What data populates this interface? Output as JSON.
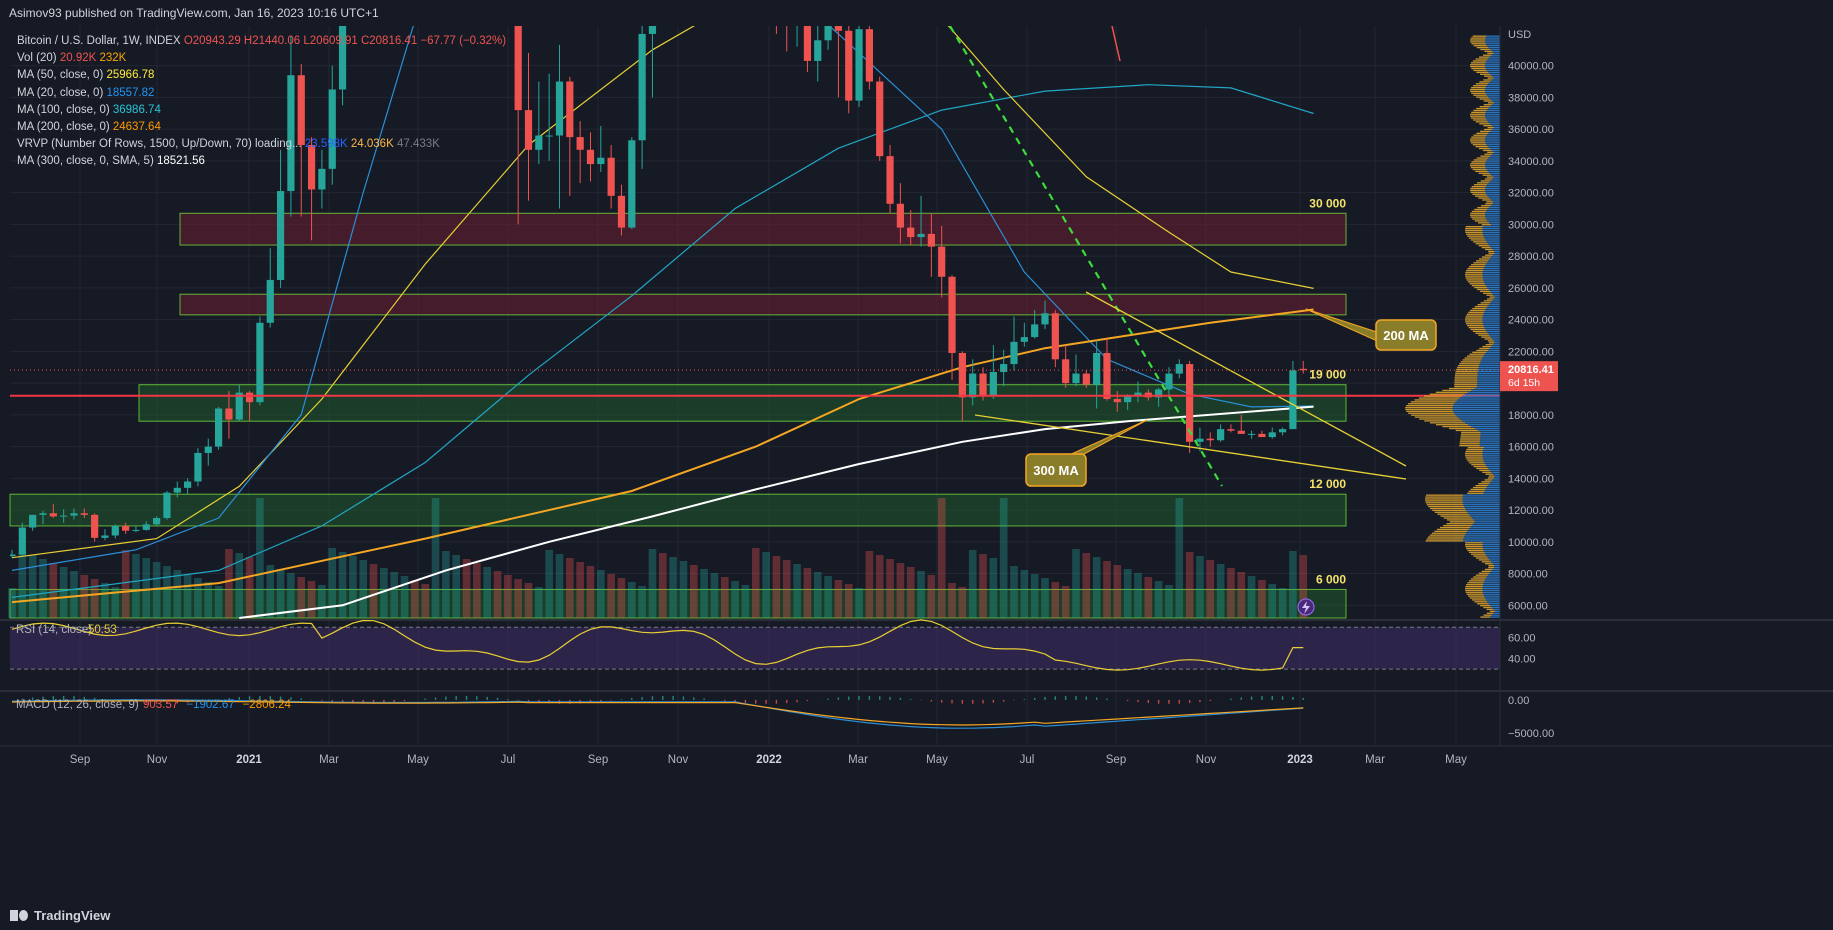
{
  "header": {
    "published": "Asimov93 published on TradingView.com, Jan 16, 2023 10:16 UTC+1"
  },
  "legend": [
    {
      "label": "Bitcoin / U.S. Dollar, 1W, INDEX",
      "values": [
        "O20943.29",
        "H21440.06",
        "L20609.91",
        "C20816.41",
        "−67.77 (−0.32%)"
      ],
      "colors": [
        "#ef5350",
        "#ef5350",
        "#ef5350",
        "#ef5350",
        "#ef5350"
      ]
    },
    {
      "label": "Vol (20)",
      "values": [
        "20.92K",
        "232K"
      ],
      "colors": [
        "#ef5350",
        "#f7a600"
      ]
    },
    {
      "label": "MA (50, close, 0)",
      "values": [
        "25966.78"
      ],
      "colors": [
        "#ffeb3b"
      ]
    },
    {
      "label": "MA (20, close, 0)",
      "values": [
        "18557.82"
      ],
      "colors": [
        "#2196f3"
      ]
    },
    {
      "label": "MA (100, close, 0)",
      "values": [
        "36986.74"
      ],
      "colors": [
        "#26c6da"
      ]
    },
    {
      "label": "MA (200, close, 0)",
      "values": [
        "24637.64"
      ],
      "colors": [
        "#ff9800"
      ]
    },
    {
      "label": "VRVP (Number Of Rows, 1500, Up/Down, 70) loading...",
      "values": [
        "23.598K",
        "24.036K",
        "47.433K"
      ],
      "colors": [
        "#2962ff",
        "#ffb74d",
        "#787b86"
      ]
    },
    {
      "label": "MA (300, close, 0, SMA, 5)",
      "values": [
        "18521.56"
      ],
      "colors": [
        "#ffffff"
      ]
    }
  ],
  "footer": {
    "brand": "TradingView"
  },
  "colors": {
    "up": "#26a69a",
    "down": "#ef5350",
    "ma50": "#e8cf34",
    "ma20": "#2b8fd6",
    "ma100": "#20a7c4",
    "ma200": "#f5a623",
    "ma300": "#ffffff",
    "rsi": "#e8cf34",
    "macd": "#2b8fd6",
    "signal": "#f5a623",
    "zone_red": "#6b1f33",
    "zone_green": "#1f5a2e"
  },
  "chart_data": {
    "type": "candlestick",
    "title": "Bitcoin / U.S. Dollar, 1W, INDEX",
    "price_axis": {
      "ticks": [
        6000,
        8000,
        10000,
        12000,
        14000,
        16000,
        18000,
        20000,
        22000,
        24000,
        26000,
        28000,
        30000,
        32000,
        34000,
        36000,
        38000,
        40000
      ],
      "currency": "USD",
      "ylim": [
        5200,
        42500
      ]
    },
    "time_axis": {
      "labels": [
        "Sep",
        "Nov",
        "2021",
        "Mar",
        "May",
        "Jul",
        "Sep",
        "Nov",
        "2022",
        "Mar",
        "May",
        "Jul",
        "Sep",
        "Nov",
        "2023",
        "Mar",
        "May"
      ],
      "start": "2020-07-20",
      "interval": "1W"
    },
    "last_price": {
      "value": "20816.41",
      "countdown": "6d 15h"
    },
    "candles_ohlc": [
      [
        9100,
        9500,
        9000,
        9200
      ],
      [
        9200,
        11200,
        9100,
        10900
      ],
      [
        10900,
        11500,
        10700,
        11700
      ],
      [
        11700,
        11950,
        11100,
        11800
      ],
      [
        11800,
        12400,
        11500,
        11600
      ],
      [
        11600,
        12050,
        11200,
        11650
      ],
      [
        11650,
        12100,
        11400,
        11800
      ],
      [
        11800,
        12100,
        11500,
        11700
      ],
      [
        11700,
        11800,
        10000,
        10250
      ],
      [
        10250,
        10800,
        10100,
        10400
      ],
      [
        10400,
        11100,
        10200,
        11000
      ],
      [
        11000,
        11200,
        10500,
        10700
      ],
      [
        10700,
        11000,
        10600,
        10750
      ],
      [
        10750,
        11300,
        10700,
        11100
      ],
      [
        11100,
        11600,
        11000,
        11500
      ],
      [
        11500,
        13200,
        11400,
        13100
      ],
      [
        13100,
        13800,
        12800,
        13400
      ],
      [
        13400,
        14000,
        13000,
        13800
      ],
      [
        13800,
        15900,
        13500,
        15600
      ],
      [
        15600,
        16500,
        14800,
        16000
      ],
      [
        16000,
        18500,
        15800,
        18400
      ],
      [
        18400,
        19500,
        16500,
        17700
      ],
      [
        17700,
        19900,
        17600,
        19400
      ],
      [
        19400,
        19500,
        17600,
        18800
      ],
      [
        18800,
        24200,
        18600,
        23800
      ],
      [
        23800,
        28500,
        23500,
        26500
      ],
      [
        26500,
        34700,
        26000,
        32100
      ],
      [
        32100,
        41900,
        30500,
        39400
      ],
      [
        39400,
        40100,
        30500,
        35000
      ],
      [
        35000,
        35500,
        29000,
        32200
      ],
      [
        32200,
        34700,
        31000,
        33500
      ],
      [
        33500,
        40000,
        32500,
        38500
      ],
      [
        38500,
        48000,
        37500,
        46400
      ],
      [
        46400,
        50000,
        44500,
        47600
      ],
      [
        47600,
        58000,
        47300,
        57500
      ],
      [
        57500,
        58300,
        45000,
        46300
      ],
      [
        46300,
        52000,
        44800,
        48800
      ],
      [
        48800,
        51900,
        47100,
        51000
      ],
      [
        51000,
        61800,
        50900,
        59900
      ],
      [
        59900,
        61000,
        53000,
        57500
      ],
      [
        57500,
        59500,
        50500,
        56000
      ],
      [
        56000,
        59800,
        54800,
        57100
      ],
      [
        57100,
        61000,
        57000,
        58700
      ],
      [
        58700,
        64800,
        58000,
        60000
      ],
      [
        60000,
        61000,
        51000,
        56200
      ],
      [
        56200,
        56600,
        47000,
        49100
      ],
      [
        49100,
        58000,
        47500,
        57800
      ],
      [
        57800,
        58300,
        53000,
        56600
      ],
      [
        56600,
        59600,
        46000,
        49600
      ],
      [
        49600,
        51000,
        30000,
        37200
      ],
      [
        37200,
        40800,
        31500,
        34700
      ],
      [
        34700,
        39000,
        33800,
        35600
      ],
      [
        35600,
        39500,
        34000,
        35600
      ],
      [
        35600,
        41300,
        31000,
        39000
      ],
      [
        39000,
        39300,
        31800,
        35500
      ],
      [
        35500,
        36500,
        32600,
        34700
      ],
      [
        34700,
        35800,
        32700,
        33800
      ],
      [
        33800,
        36200,
        33300,
        34200
      ],
      [
        34200,
        35000,
        31000,
        31800
      ],
      [
        31800,
        32500,
        29300,
        29800
      ],
      [
        29800,
        35500,
        29700,
        35300
      ],
      [
        35300,
        42500,
        33500,
        42000
      ],
      [
        42000,
        45000,
        38000,
        45000
      ]
    ],
    "candles_visible_tail_ohlc": [
      [
        47000,
        48000,
        42000,
        43000
      ],
      [
        43000,
        44800,
        40900,
        42500
      ],
      [
        42500,
        45000,
        41200,
        43000
      ],
      [
        43000,
        44000,
        39600,
        40300
      ],
      [
        40300,
        42500,
        39000,
        41600
      ],
      [
        41600,
        44000,
        41000,
        43200
      ],
      [
        43200,
        44500,
        38000,
        42200
      ],
      [
        42200,
        42600,
        37000,
        37800
      ],
      [
        37800,
        43000,
        37400,
        42300
      ],
      [
        42300,
        43200,
        38500,
        39000
      ],
      [
        39000,
        39300,
        34000,
        34300
      ],
      [
        34300,
        35000,
        30700,
        31300
      ],
      [
        31300,
        32600,
        28800,
        29800
      ],
      [
        29800,
        30900,
        28700,
        29200
      ],
      [
        29200,
        31800,
        28600,
        29400
      ],
      [
        29400,
        30700,
        26700,
        28600
      ],
      [
        28600,
        29900,
        25400,
        26700
      ],
      [
        26700,
        26800,
        20200,
        21900
      ],
      [
        21900,
        22000,
        17600,
        19100
      ],
      [
        19100,
        21500,
        18600,
        20600
      ],
      [
        20600,
        21000,
        18900,
        19200
      ],
      [
        19200,
        22400,
        19000,
        20700
      ],
      [
        20700,
        22100,
        19800,
        21200
      ],
      [
        21200,
        24200,
        20800,
        22600
      ],
      [
        22600,
        23800,
        22300,
        22900
      ],
      [
        22900,
        24600,
        22800,
        23700
      ],
      [
        23700,
        25200,
        23400,
        24400
      ],
      [
        24400,
        24600,
        21000,
        21500
      ],
      [
        21500,
        22400,
        19700,
        20000
      ],
      [
        20000,
        21800,
        19800,
        20600
      ],
      [
        20600,
        20800,
        19700,
        19900
      ],
      [
        19900,
        22700,
        18400,
        21900
      ],
      [
        21900,
        22800,
        18900,
        19000
      ],
      [
        19000,
        19500,
        18200,
        18800
      ],
      [
        18800,
        19300,
        18300,
        19200
      ],
      [
        19200,
        20100,
        18800,
        19400
      ],
      [
        19400,
        19600,
        18900,
        19100
      ],
      [
        19100,
        19700,
        18500,
        19600
      ],
      [
        19600,
        21000,
        19100,
        20600
      ],
      [
        20600,
        21500,
        20300,
        21200
      ],
      [
        21200,
        21400,
        15600,
        16300
      ],
      [
        16300,
        17200,
        15700,
        16500
      ],
      [
        16500,
        16900,
        16000,
        16400
      ],
      [
        16400,
        17400,
        16300,
        17100
      ],
      [
        17100,
        17400,
        16900,
        17000
      ],
      [
        17000,
        18000,
        16800,
        16800
      ],
      [
        16800,
        17000,
        16500,
        16800
      ],
      [
        16800,
        17000,
        16600,
        16600
      ],
      [
        16600,
        17200,
        16500,
        16900
      ],
      [
        16900,
        17200,
        16700,
        17100
      ],
      [
        17100,
        21400,
        17100,
        20800
      ],
      [
        20900,
        21400,
        20600,
        20816
      ]
    ],
    "zones": [
      {
        "type": "resistance",
        "from": 28700,
        "to": 30700,
        "label": "30 000"
      },
      {
        "type": "resistance",
        "from": 24300,
        "to": 25600,
        "label": ""
      },
      {
        "type": "support",
        "from": 17600,
        "to": 19900,
        "label": "19 000"
      },
      {
        "type": "support",
        "from": 11000,
        "to": 13000,
        "label": "12 000"
      },
      {
        "type": "support",
        "from": 5200,
        "to": 7000,
        "label": "6 000"
      }
    ],
    "annotations": [
      {
        "text": "200 MA",
        "type": "callout"
      },
      {
        "text": "300 MA",
        "type": "callout"
      }
    ],
    "rsi": {
      "label": "RSI (14, close)",
      "value": "50.53",
      "ticks": [
        "60.00",
        "40.00"
      ],
      "bands": [
        70,
        30
      ],
      "ylim": [
        10,
        75
      ]
    },
    "macd": {
      "label": "MACD (12, 26, close, 9)",
      "values": [
        "903.57",
        "−1902.67",
        "−2806.24"
      ],
      "ticks": [
        "0.00",
        "−5000.00"
      ],
      "ylim": [
        -7000,
        1200
      ]
    }
  }
}
